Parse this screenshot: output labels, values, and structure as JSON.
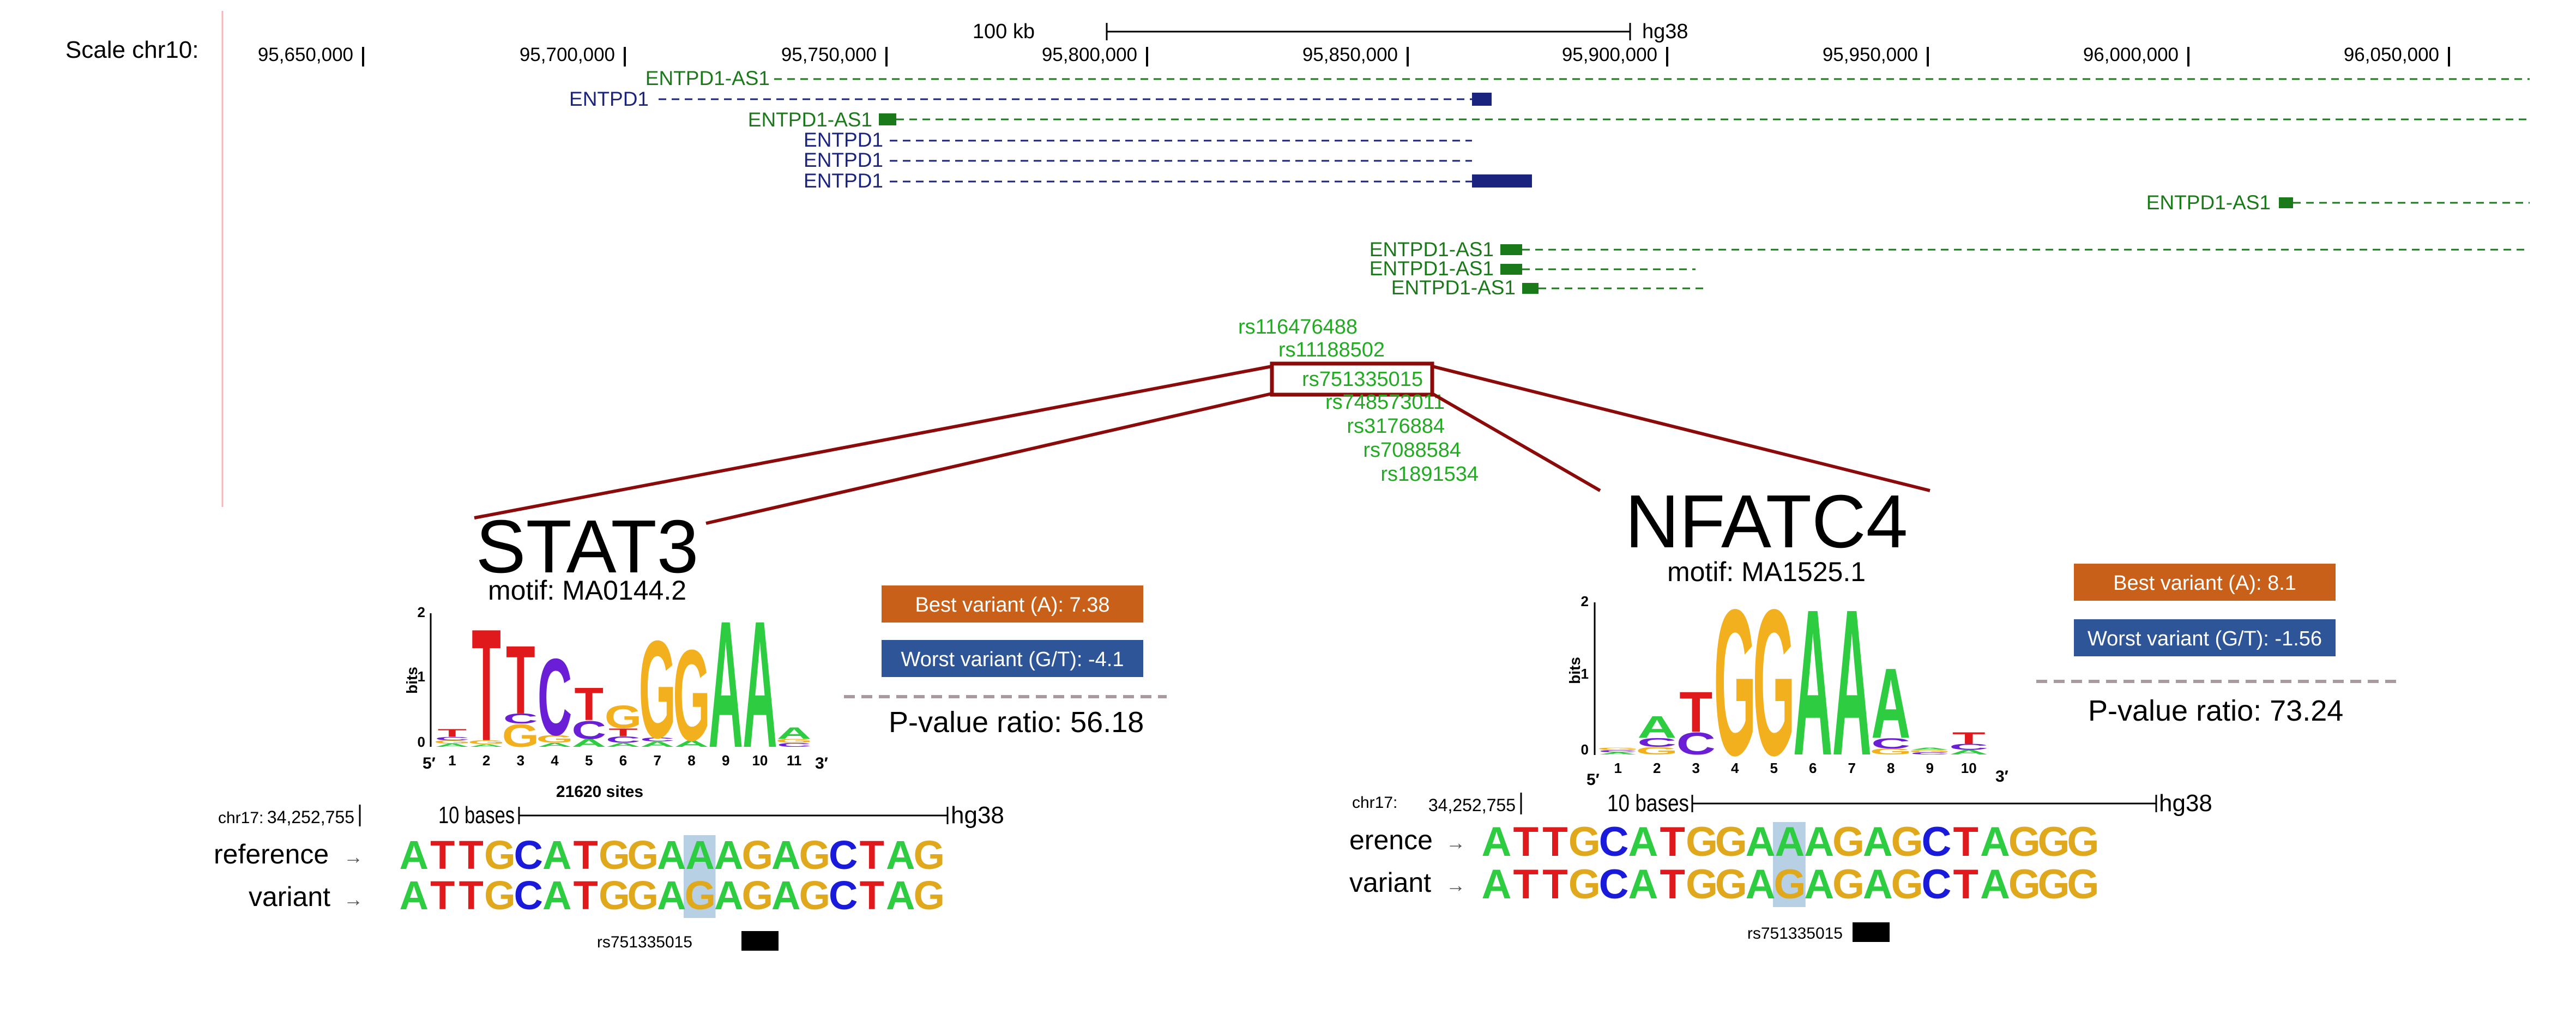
{
  "browser": {
    "scale_label": "Scale chr10:",
    "scalebar_label": "100 kb",
    "assembly": "hg38",
    "positions": [
      "95,650,000",
      "95,700,000",
      "95,750,000",
      "95,800,000",
      "95,850,000",
      "95,900,000",
      "95,950,000",
      "96,000,000",
      "96,050,000"
    ],
    "genes": [
      {
        "name": "ENTPD1-AS1",
        "strand": "-",
        "color": "#1a7a1a"
      },
      {
        "name": "ENTPD1",
        "strand": "+",
        "color": "#1a237e"
      },
      {
        "name": "ENTPD1-AS1",
        "strand": "-",
        "color": "#1a7a1a"
      },
      {
        "name": "ENTPD1",
        "strand": "+",
        "color": "#1a237e"
      },
      {
        "name": "ENTPD1",
        "strand": "+",
        "color": "#1a237e"
      },
      {
        "name": "ENTPD1",
        "strand": "+",
        "color": "#1a237e"
      },
      {
        "name": "ENTPD1-AS1",
        "strand": "-",
        "color": "#1a7a1a"
      },
      {
        "name": "ENTPD1-AS1",
        "strand": "-",
        "color": "#1a7a1a"
      },
      {
        "name": "ENTPD1-AS1",
        "strand": "-",
        "color": "#1a7a1a"
      },
      {
        "name": "ENTPD1-AS1",
        "strand": "-",
        "color": "#1a7a1a"
      }
    ],
    "snps": [
      "rs116476488",
      "rs11188502",
      "rs751335015",
      "rs748573011",
      "rs3176884",
      "rs7088584",
      "rs1891534"
    ],
    "highlight_snp": "rs751335015"
  },
  "stat3": {
    "tf": "STAT3",
    "motif": "motif: MA0144.2",
    "best": "Best variant (A): 7.38",
    "worst": "Worst variant (G/T): -4.1",
    "pvalue": "P-value ratio: 56.18",
    "ylabel": "bits",
    "yticks": [
      "0",
      "1",
      "2"
    ],
    "positions": [
      "1",
      "2",
      "3",
      "4",
      "5",
      "6",
      "7",
      "8",
      "9",
      "10",
      "11"
    ],
    "end5": "5′",
    "end3": "3′",
    "sites": "21620 sites",
    "logo": [
      [
        [
          "A",
          0.05
        ],
        [
          "G",
          0.05
        ],
        [
          "C",
          0.05
        ],
        [
          "T",
          0.12
        ]
      ],
      [
        [
          "A",
          0.04
        ],
        [
          "G",
          0.06
        ],
        [
          "T",
          1.72
        ]
      ],
      [
        [
          "G",
          0.35
        ],
        [
          "C",
          0.15
        ],
        [
          "T",
          1.05
        ]
      ],
      [
        [
          "A",
          0.06
        ],
        [
          "G",
          0.12
        ],
        [
          "C",
          1.18
        ]
      ],
      [
        [
          "A",
          0.12
        ],
        [
          "C",
          0.28
        ],
        [
          "T",
          0.5
        ]
      ],
      [
        [
          "A",
          0.06
        ],
        [
          "C",
          0.1
        ],
        [
          "T",
          0.12
        ],
        [
          "G",
          0.35
        ]
      ],
      [
        [
          "A",
          0.08
        ],
        [
          "C",
          0.06
        ],
        [
          "G",
          1.5
        ]
      ],
      [
        [
          "A",
          0.1
        ],
        [
          "G",
          1.4
        ]
      ],
      [
        [
          "A",
          1.95
        ]
      ],
      [
        [
          "A",
          1.95
        ]
      ],
      [
        [
          "C",
          0.06
        ],
        [
          "G",
          0.06
        ],
        [
          "A",
          0.18
        ]
      ]
    ],
    "coord_chrom": "chr17:",
    "coord_pos": "34,252,755",
    "bases_label": "10 bases",
    "assembly": "hg38",
    "ref_label": "reference",
    "var_label": "variant",
    "ref_seq": "ATTGCATGGAAAGAGCTAG",
    "var_seq": "ATTGCATGGAGAGAGCTAG",
    "highlight_index": 10,
    "snp": "rs751335015"
  },
  "nfatc4": {
    "tf": "NFATC4",
    "motif": "motif: MA1525.1",
    "best": "Best variant (A): 8.1",
    "worst": "Worst variant (G/T): -1.56",
    "pvalue": "P-value ratio: 73.24",
    "ylabel": "bits",
    "yticks": [
      "0",
      "1",
      "2"
    ],
    "positions": [
      "1",
      "2",
      "3",
      "4",
      "5",
      "6",
      "7",
      "8",
      "9",
      "10"
    ],
    "end5": "5′",
    "end3": "3′",
    "logo": [
      [
        [
          "A",
          0.03
        ],
        [
          "C",
          0.03
        ],
        [
          "G",
          0.03
        ]
      ],
      [
        [
          "G",
          0.1
        ],
        [
          "C",
          0.12
        ],
        [
          "A",
          0.3
        ]
      ],
      [
        [
          "C",
          0.3
        ],
        [
          "T",
          0.55
        ]
      ],
      [
        [
          "G",
          1.98
        ]
      ],
      [
        [
          "G",
          1.98
        ]
      ],
      [
        [
          "A",
          1.98
        ]
      ],
      [
        [
          "A",
          1.98
        ]
      ],
      [
        [
          "G",
          0.08
        ],
        [
          "C",
          0.14
        ],
        [
          "A",
          0.95
        ]
      ],
      [
        [
          "C",
          0.03
        ],
        [
          "G",
          0.03
        ],
        [
          "A",
          0.03
        ]
      ],
      [
        [
          "A",
          0.06
        ],
        [
          "C",
          0.08
        ],
        [
          "T",
          0.16
        ]
      ]
    ],
    "coord_chrom": "chr17:",
    "coord_pos": "34,252,755",
    "bases_label": "10 bases",
    "assembly": "hg38",
    "ref_label": "erence",
    "var_label": "variant",
    "ref_seq": "ATTGCATGGAAAGAGCTAGGG",
    "var_seq": "ATTGCATGGAGAGAGCTAGGG",
    "highlight_index": 10,
    "snp": "rs751335015"
  },
  "colors": {
    "A": "#2ecc40",
    "C": "#1a1adb",
    "G": "#e0a81c",
    "T": "#e0191c",
    "G_logo": "#f2b01e",
    "C_logo": "#6a1fd6",
    "best_bg": "#c8601a",
    "worst_bg": "#2d5597",
    "highlight_bg": "#b8d0e3",
    "dark_red": "#8b0a0a",
    "snp_green": "#22aa22"
  }
}
